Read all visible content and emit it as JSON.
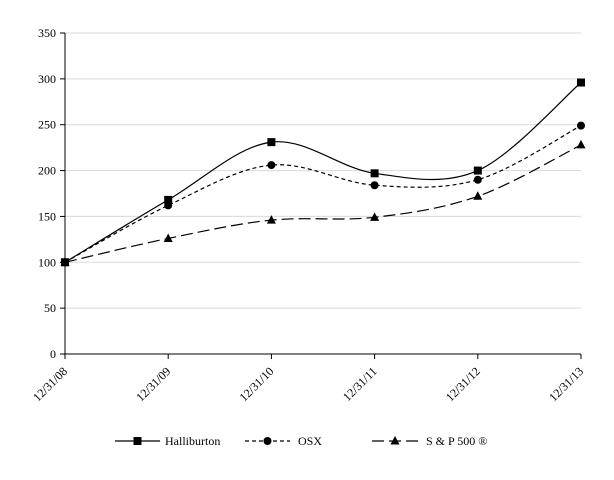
{
  "chart_data": {
    "type": "line",
    "title": "",
    "xlabel": "",
    "ylabel": "",
    "categories": [
      "12/31/08",
      "12/31/09",
      "12/31/10",
      "12/31/11",
      "12/31/12",
      "12/31/13"
    ],
    "ylim": [
      0,
      350
    ],
    "yticks": [
      0,
      50,
      100,
      150,
      200,
      250,
      300,
      350
    ],
    "grid": "horizontal",
    "legend_position": "bottom",
    "series": [
      {
        "name": "Halliburton",
        "marker": "square",
        "dash": "solid",
        "values": [
          100,
          168,
          231,
          197,
          200,
          296
        ]
      },
      {
        "name": "OSX",
        "marker": "circle",
        "dash": "short-dash",
        "values": [
          100,
          162,
          206,
          184,
          190,
          249
        ]
      },
      {
        "name": "S & P 500 ®",
        "marker": "triangle",
        "dash": "long-dash",
        "values": [
          100,
          126,
          146,
          149,
          172,
          228
        ]
      }
    ]
  }
}
